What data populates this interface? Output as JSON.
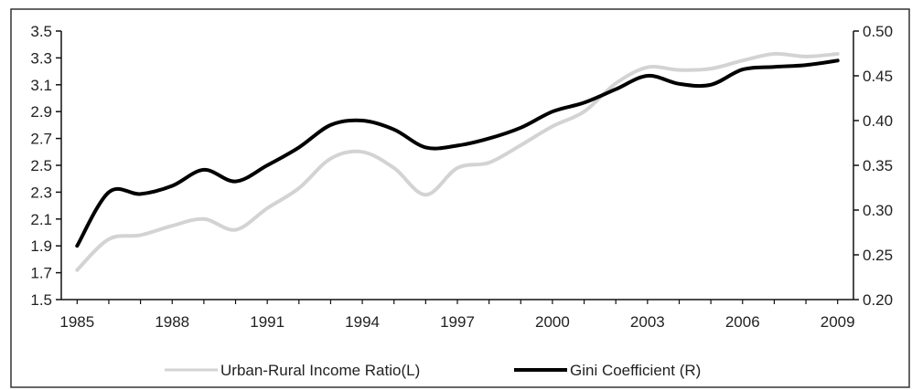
{
  "chart_data": {
    "type": "line",
    "title": "",
    "xlabel": "",
    "ylabel_left": "",
    "ylabel_right": "",
    "x_ticks": [
      "1985",
      "1988",
      "1991",
      "1994",
      "1997",
      "2000",
      "2003",
      "2006",
      "2009"
    ],
    "y_left": {
      "ylim": [
        1.5,
        3.5
      ],
      "ticks": [
        "3.5",
        "3.3",
        "3.1",
        "2.9",
        "2.7",
        "2.5",
        "2.3",
        "2.1",
        "1.9",
        "1.7",
        "1.5"
      ]
    },
    "y_right": {
      "ylim": [
        0.2,
        0.5
      ],
      "ticks": [
        "0.50",
        "0.45",
        "0.40",
        "0.35",
        "0.30",
        "0.25",
        "0.20"
      ]
    },
    "grid": false,
    "legend_position": "bottom",
    "series": [
      {
        "name": "Urban-Rural Income Ratio(L)",
        "axis": "left",
        "color": "#d3d3d3",
        "x": [
          1985,
          1986,
          1987,
          1988,
          1989,
          1990,
          1991,
          1992,
          1993,
          1994,
          1995,
          1996,
          1997,
          1998,
          1999,
          2000,
          2001,
          2002,
          2003,
          2004,
          2005,
          2006,
          2007,
          2008,
          2009
        ],
        "values": [
          1.72,
          1.95,
          1.98,
          2.05,
          2.1,
          2.02,
          2.18,
          2.33,
          2.55,
          2.6,
          2.48,
          2.28,
          2.48,
          2.52,
          2.65,
          2.79,
          2.9,
          3.11,
          3.23,
          3.21,
          3.22,
          3.28,
          3.33,
          3.31,
          3.33
        ]
      },
      {
        "name": "Gini Coefficient (R)",
        "axis": "right",
        "color": "#000000",
        "x": [
          1985,
          1986,
          1987,
          1988,
          1989,
          1990,
          1991,
          1992,
          1993,
          1994,
          1995,
          1996,
          1997,
          1998,
          1999,
          2000,
          2001,
          2002,
          2003,
          2004,
          2005,
          2006,
          2007,
          2008,
          2009
        ],
        "values": [
          0.26,
          0.32,
          0.318,
          0.327,
          0.345,
          0.332,
          0.35,
          0.37,
          0.395,
          0.4,
          0.39,
          0.37,
          0.372,
          0.38,
          0.392,
          0.41,
          0.42,
          0.435,
          0.45,
          0.441,
          0.44,
          0.457,
          0.46,
          0.462,
          0.467
        ]
      }
    ]
  }
}
